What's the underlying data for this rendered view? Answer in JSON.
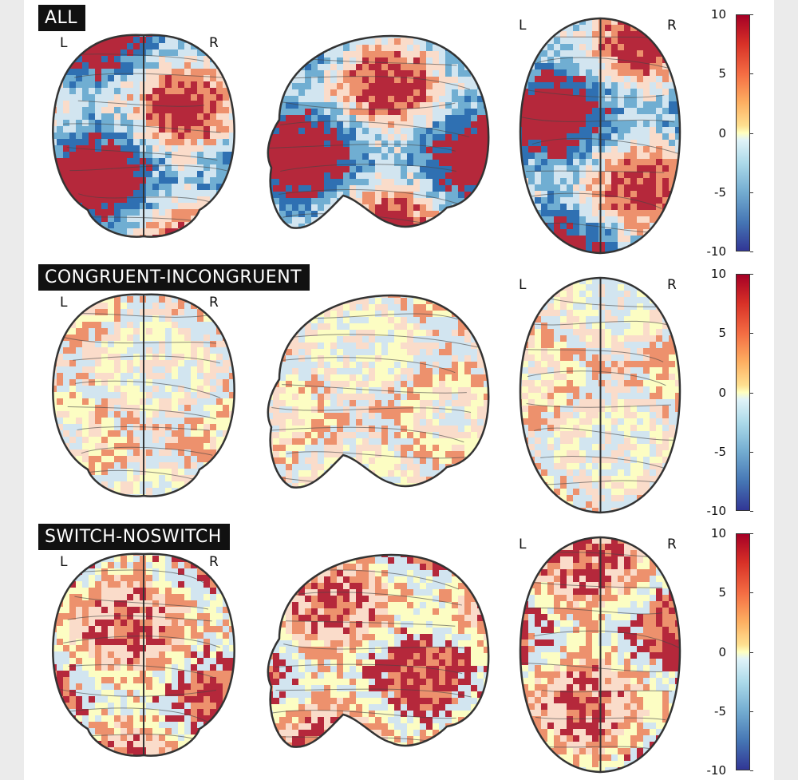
{
  "panels": [
    {
      "title": "ALL",
      "left_label": "L",
      "right_label": "R",
      "colorbar_ticks": [
        "10",
        "5",
        "0",
        "-5",
        "-10"
      ],
      "style": "strong"
    },
    {
      "title": "CONGRUENT-INCONGRUENT",
      "left_label": "L",
      "right_label": "R",
      "colorbar_ticks": [
        "10",
        "5",
        "0",
        "-5",
        "-10"
      ],
      "style": "weak"
    },
    {
      "title": "SWITCH-NOSWITCH",
      "left_label": "L",
      "right_label": "R",
      "colorbar_ticks": [
        "10",
        "5",
        "0",
        "-5",
        "-10"
      ],
      "style": "medium"
    }
  ],
  "colors": {
    "strong_positive": "#b2182b",
    "positive": "#ef8a62",
    "weak_positive": "#fddbc7",
    "neutral": "#ffffbf",
    "weak_negative": "#d1e5f0",
    "negative": "#67a9cf",
    "strong_negative": "#2166ac"
  }
}
